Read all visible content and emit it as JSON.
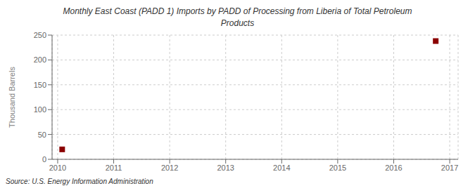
{
  "chart_data": {
    "type": "scatter",
    "title": "Monthly East Coast (PADD 1) Imports by PADD of Processing from Liberia of Total Petroleum\nProducts",
    "ylabel": "Thousand Barrels",
    "source": "Source: U.S. Energy Information Administration",
    "x": [
      2010.08,
      2016.75
    ],
    "values": [
      20,
      238
    ],
    "color": "#8b0000",
    "marker": "square",
    "xlim": [
      2009.9,
      2017.15
    ],
    "xticks": [
      2010,
      2011,
      2012,
      2013,
      2014,
      2015,
      2016,
      2017
    ],
    "ylim": [
      0,
      250
    ],
    "yticks": [
      0,
      50,
      100,
      150,
      200,
      250
    ],
    "grid": true
  }
}
